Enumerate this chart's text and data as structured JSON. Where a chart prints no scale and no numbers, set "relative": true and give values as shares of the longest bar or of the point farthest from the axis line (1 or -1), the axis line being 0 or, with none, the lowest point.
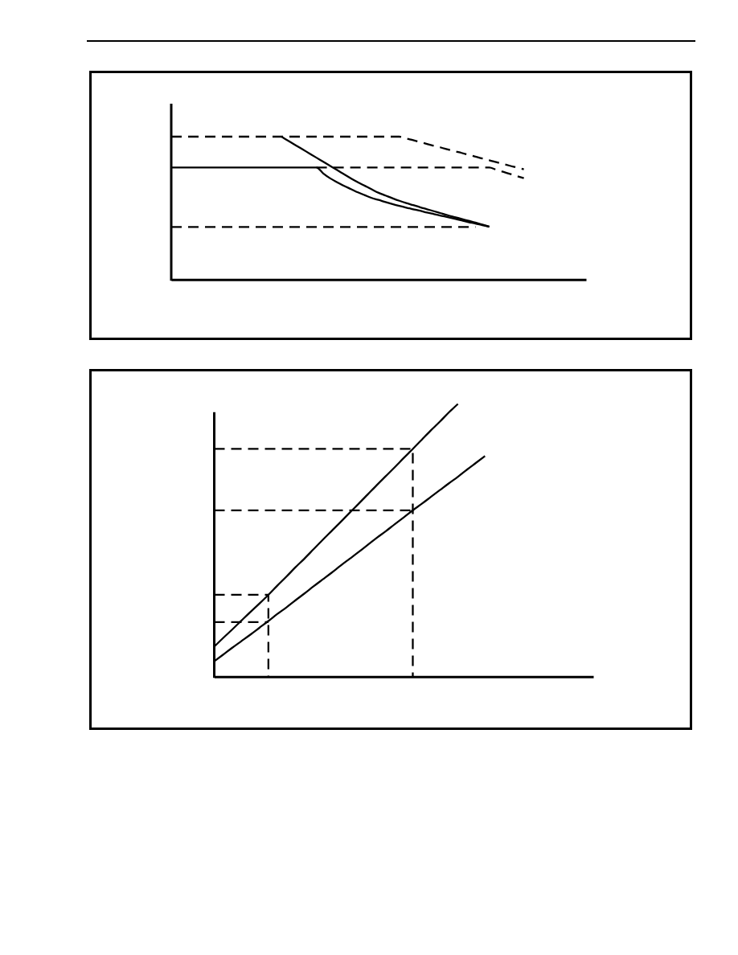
{
  "chart_data": [
    {
      "type": "line",
      "relative": true,
      "categories": [
        null,
        null,
        null,
        null,
        null,
        null,
        null,
        null,
        null,
        null,
        null,
        null,
        null,
        null,
        null,
        null,
        null,
        null,
        null,
        null,
        null,
        null,
        null,
        null,
        null,
        null,
        null,
        null,
        null,
        null,
        null,
        null,
        null,
        null,
        null,
        null,
        null,
        null,
        null,
        null,
        null,
        null,
        null,
        null,
        null,
        null,
        null,
        null,
        null,
        null,
        null,
        null,
        null,
        null,
        null,
        null,
        null,
        null,
        null,
        null,
        null
      ],
      "series": [
        {
          "color": "#000000",
          "line_style": "dashed",
          "values": [
            1,
            1,
            1,
            1,
            1,
            1,
            1,
            1,
            1,
            1,
            1,
            1,
            1,
            1,
            1,
            1,
            1,
            1,
            1,
            1,
            1,
            1,
            1,
            1,
            1,
            1,
            1,
            1,
            1,
            1,
            1,
            1,
            1,
            1,
            0.987,
            0.975,
            0.962,
            0.949,
            0.936,
            0.924,
            0.911,
            0.898,
            0.886,
            0.873,
            0.86,
            0.847,
            0.835,
            0.822,
            0.809,
            0.796,
            0.784,
            0.771,
            null,
            null,
            null,
            null,
            null,
            null,
            null,
            null,
            null
          ]
        },
        {
          "color": "#000000",
          "line_style": "dashed",
          "values": [
            null,
            null,
            null,
            null,
            null,
            null,
            null,
            null,
            null,
            null,
            null,
            null,
            null,
            null,
            null,
            null,
            null,
            null,
            null,
            null,
            null,
            0.784,
            0.784,
            0.784,
            0.784,
            0.784,
            0.784,
            0.784,
            0.784,
            0.784,
            0.784,
            0.784,
            0.784,
            0.784,
            0.784,
            0.784,
            0.784,
            0.784,
            0.784,
            0.784,
            0.784,
            0.784,
            0.784,
            0.784,
            0.784,
            0.784,
            0.784,
            0.769,
            0.754,
            0.739,
            0.724,
            0.709,
            null,
            null,
            null,
            null,
            null,
            null,
            null,
            null,
            null
          ]
        },
        {
          "color": "#000000",
          "line_style": "dashed",
          "values": [
            0.368,
            0.368,
            0.368,
            0.368,
            0.368,
            0.368,
            0.368,
            0.368,
            0.368,
            0.368,
            0.368,
            0.368,
            0.368,
            0.368,
            0.368,
            0.368,
            0.368,
            0.368,
            0.368,
            0.368,
            0.368,
            0.368,
            0.368,
            0.368,
            0.368,
            0.368,
            0.368,
            0.368,
            0.368,
            0.368,
            0.368,
            0.368,
            0.368,
            0.368,
            0.368,
            0.368,
            0.368,
            0.368,
            0.368,
            0.368,
            0.368,
            0.368,
            0.368,
            0.368,
            0.368,
            null,
            null,
            null,
            null,
            null,
            null,
            null,
            null,
            null,
            null,
            null,
            null,
            null,
            null,
            null,
            null
          ]
        },
        {
          "color": "#000000",
          "values": [
            0.784,
            0.784,
            0.784,
            0.784,
            0.784,
            0.784,
            0.784,
            0.784,
            0.784,
            0.784,
            0.784,
            0.784,
            0.784,
            0.784,
            0.784,
            0.784,
            0.784,
            0.784,
            0.784,
            0.784,
            0.784,
            0.784,
            0.742,
            0.708,
            0.681,
            0.655,
            0.633,
            0.61,
            0.59,
            0.571,
            0.557,
            0.542,
            0.528,
            0.515,
            0.503,
            0.492,
            0.481,
            0.469,
            0.458,
            0.447,
            0.436,
            0.425,
            0.414,
            0.402,
            0.392,
            0.38,
            0.369,
            null,
            null,
            null,
            null,
            null,
            null,
            null,
            null,
            null,
            null,
            null,
            null,
            null,
            null
          ]
        },
        {
          "color": "#000000",
          "values": [
            null,
            null,
            null,
            null,
            null,
            null,
            null,
            null,
            null,
            null,
            null,
            null,
            null,
            null,
            null,
            null,
            0.998,
            0.969,
            0.94,
            0.911,
            0.882,
            0.853,
            0.824,
            0.795,
            0.766,
            0.737,
            0.708,
            0.681,
            0.656,
            0.631,
            0.607,
            0.588,
            0.569,
            0.551,
            0.535,
            0.521,
            0.506,
            0.492,
            0.478,
            0.464,
            0.45,
            0.437,
            0.424,
            0.411,
            0.398,
            0.384,
            0.37,
            null,
            null,
            null,
            null,
            null,
            null,
            null,
            null,
            null,
            null,
            null,
            null,
            null,
            null
          ]
        }
      ]
    },
    {
      "type": "line",
      "relative": true,
      "categories": [
        null,
        null,
        null,
        null,
        null,
        null,
        null,
        null,
        null,
        null,
        null,
        null,
        null,
        null,
        null,
        null,
        null,
        null,
        null,
        null,
        null,
        null,
        null,
        null,
        null,
        null,
        null,
        null,
        null,
        null,
        null,
        null,
        null,
        null,
        null,
        null,
        null,
        null,
        null,
        null,
        null,
        null,
        null
      ],
      "series": [
        {
          "type": "step",
          "color": "#000000",
          "line_style": "dashed",
          "values": [
            0.835,
            0.835,
            0.835,
            0.835,
            0.835,
            0.835,
            0.835,
            0.835,
            0.835,
            0.835,
            0.835,
            0.835,
            0.835,
            0.835,
            0.835,
            0.835,
            0.835,
            0.835,
            0.835,
            0.835,
            0.835,
            0.835,
            0,
            null,
            null,
            null,
            null,
            null,
            null,
            null,
            null,
            null,
            null,
            null,
            null,
            null,
            null,
            null,
            null,
            null,
            null,
            null,
            null
          ]
        },
        {
          "color": "#000000",
          "line_style": "dashed",
          "values": [
            0.61,
            0.61,
            0.61,
            0.61,
            0.61,
            0.61,
            0.61,
            0.61,
            0.61,
            0.61,
            0.61,
            0.61,
            0.61,
            0.61,
            0.61,
            0.61,
            0.61,
            0.61,
            0.61,
            0.61,
            0.61,
            0.61,
            0.61,
            null,
            null,
            null,
            null,
            null,
            null,
            null,
            null,
            null,
            null,
            null,
            null,
            null,
            null,
            null,
            null,
            null,
            null,
            null,
            null
          ]
        },
        {
          "type": "step",
          "color": "#000000",
          "line_style": "dashed",
          "values": [
            0.3,
            0.3,
            0.3,
            0.3,
            0.3,
            0.3,
            0,
            null,
            null,
            null,
            null,
            null,
            null,
            null,
            null,
            null,
            null,
            null,
            null,
            null,
            null,
            null,
            null,
            null,
            null,
            null,
            null,
            null,
            null,
            null,
            null,
            null,
            null,
            null,
            null,
            null,
            null,
            null,
            null,
            null,
            null,
            null,
            null
          ]
        },
        {
          "color": "#000000",
          "line_style": "dashed",
          "values": [
            0.2,
            0.2,
            0.2,
            0.2,
            0.2,
            0.2,
            0.2,
            null,
            null,
            null,
            null,
            null,
            null,
            null,
            null,
            null,
            null,
            null,
            null,
            null,
            null,
            null,
            null,
            null,
            null,
            null,
            null,
            null,
            null,
            null,
            null,
            null,
            null,
            null,
            null,
            null,
            null,
            null,
            null,
            null,
            null,
            null,
            null
          ]
        },
        {
          "color": "#000000",
          "values": [
            0.11,
            0.142,
            0.173,
            0.205,
            0.237,
            0.268,
            0.3,
            0.334,
            0.367,
            0.401,
            0.433,
            0.467,
            0.501,
            0.534,
            0.567,
            0.601,
            0.634,
            0.668,
            0.702,
            0.735,
            0.768,
            0.802,
            0.835,
            0.869,
            0.903,
            0.935,
            0.969,
            1,
            null,
            null,
            null,
            null,
            null,
            null,
            null,
            null,
            null,
            null,
            null,
            null,
            null,
            null,
            null
          ]
        },
        {
          "color": "#000000",
          "values": [
            0.056,
            0.081,
            0.106,
            0.13,
            0.154,
            0.179,
            0.204,
            0.23,
            0.254,
            0.28,
            0.305,
            0.331,
            0.356,
            0.381,
            0.407,
            0.432,
            0.457,
            0.483,
            0.509,
            0.533,
            0.559,
            0.584,
            0.61,
            0.634,
            0.659,
            0.684,
            0.709,
            0.733,
            0.759,
            0.784,
            0.809,
            null,
            null,
            null,
            null,
            null,
            null,
            null,
            null,
            null,
            null,
            null,
            null
          ]
        }
      ]
    }
  ]
}
